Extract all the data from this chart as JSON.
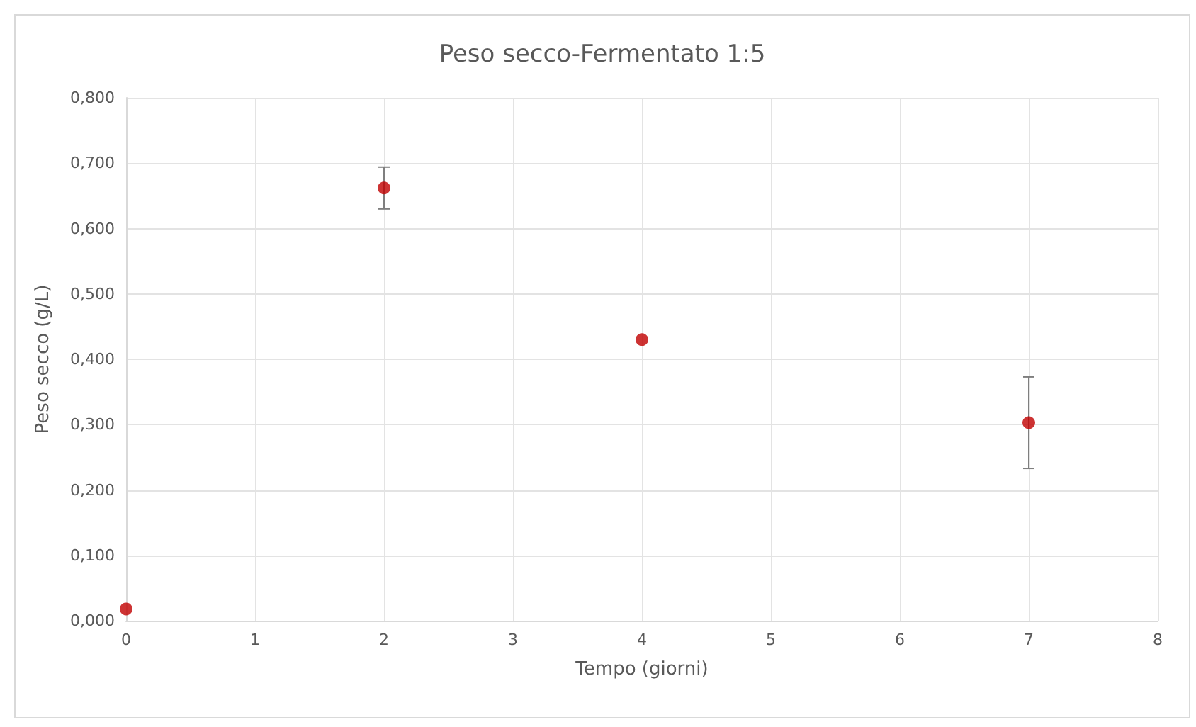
{
  "chart_data": {
    "type": "scatter",
    "title": "Peso secco-Fermentato 1:5",
    "xlabel": "Tempo (giorni)",
    "ylabel": "Peso secco (g/L)",
    "x": [
      0,
      2,
      4,
      7
    ],
    "values": [
      0.018,
      0.662,
      0.43,
      0.303
    ],
    "errors": [
      null,
      0.032,
      null,
      0.07
    ],
    "color": "#c00000",
    "marker": "circle",
    "grid": true,
    "xlim": [
      0,
      8
    ],
    "xticks": [
      0,
      1,
      2,
      3,
      4,
      5,
      6,
      7,
      8
    ],
    "ylim": [
      0,
      0.8
    ],
    "yticks": [
      {
        "value": 0,
        "label": "0,000"
      },
      {
        "value": 0.1,
        "label": "0,100"
      },
      {
        "value": 0.2,
        "label": "0,200"
      },
      {
        "value": 0.3,
        "label": "0,300"
      },
      {
        "value": 0.4,
        "label": "0,400"
      },
      {
        "value": 0.5,
        "label": "0,500"
      },
      {
        "value": 0.6,
        "label": "0,600"
      },
      {
        "value": 0.7,
        "label": "0,700"
      },
      {
        "value": 0.8,
        "label": "0,800"
      }
    ]
  }
}
